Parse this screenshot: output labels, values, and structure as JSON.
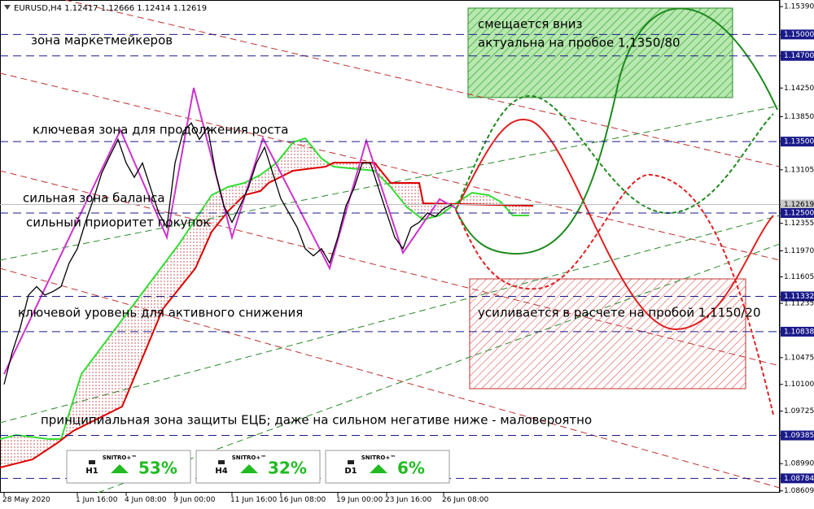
{
  "chart_data": {
    "type": "line",
    "title": "EURUSD,H4  1.12417 1.12666 1.12414 1.12619",
    "categories": [
      "28 May 2020",
      null,
      null,
      null,
      null,
      null,
      null,
      null,
      null,
      "1 Jun 16:00",
      null,
      null,
      null,
      null,
      null,
      "4 Jun 08:00",
      null,
      null,
      null,
      null,
      null,
      "9 Jun 00:00",
      null,
      null,
      null,
      null,
      null,
      null,
      "11 Jun 16:00",
      null,
      null,
      null,
      null,
      null,
      "16 Jun 08:00",
      null,
      null,
      null,
      null,
      null,
      null,
      "19 Jun 00:00",
      null,
      null,
      null,
      null,
      null,
      "23 Jun 16:00",
      null,
      null,
      null,
      null,
      null,
      null,
      "26 Jun 08:00",
      null
    ],
    "values": [
      1.101,
      1.1055,
      1.109,
      1.1135,
      1.1147,
      1.1135,
      1.114,
      1.1147,
      1.118,
      1.12,
      1.1237,
      1.127,
      1.1306,
      1.133,
      1.1353,
      1.132,
      1.13,
      1.132,
      1.1285,
      1.125,
      1.123,
      1.132,
      1.1364,
      1.1376,
      1.1353,
      1.137,
      1.1306,
      1.126,
      1.1237,
      1.126,
      1.1285,
      1.132,
      1.1342,
      1.1306,
      1.127,
      1.125,
      1.123,
      1.12,
      1.119,
      1.12,
      1.118,
      1.1216,
      1.126,
      1.1285,
      1.132,
      1.132,
      1.1285,
      1.125,
      1.1216,
      1.12,
      1.123,
      1.1237,
      1.125,
      1.1245,
      1.1256,
      1.1262
    ],
    "color": "#000000",
    "ylim": [
      1.0856,
      1.1546
    ],
    "yticks": [
      {
        "value": 1.1539,
        "label": "1.15390"
      },
      {
        "value": 1.15,
        "label": "1.15000"
      },
      {
        "value": 1.147,
        "label": "1.14700"
      },
      {
        "value": 1.1425,
        "label": "1.14250"
      },
      {
        "value": 1.1385,
        "label": "1.13850"
      },
      {
        "value": 1.135,
        "label": "1.13500"
      },
      1.13105,
      1.12619,
      {
        "value": 1.125,
        "label": "1.12500"
      },
      1.12355,
      {
        "value": 1.1197,
        "label": "1.11970"
      },
      1.11605,
      1.11332,
      1.11235,
      1.10838,
      1.10475,
      {
        "value": 1.101,
        "label": "1.10100"
      },
      1.09725,
      1.09385,
      {
        "value": 1.0899,
        "label": "1.08990"
      },
      1.08784,
      1.08609
    ],
    "levels": [
      1.15,
      1.147,
      1.135,
      1.125,
      1.11332,
      1.10838,
      1.09385,
      1.08784
    ],
    "current_price": 1.12619,
    "annotations": [
      "зона маркетмейкеров",
      "ключевая зона для продолжения роста",
      "сильная зона баланса",
      "сильный приоритет покупок",
      "ключевой уровень для активного снижения",
      "принципиальная зона защиты ЕЦБ; даже на сильном негативе ниже - маловероятно",
      "смещается вниз",
      "актуальна на пробое 1,1350/80",
      "усиливается в расчете на пробой 1,1150/20"
    ],
    "panels": [
      {
        "brand": "SNITRO+™",
        "timeframe": "H1",
        "value": 53,
        "value_label": "53%"
      },
      {
        "brand": "SNITRO+™",
        "timeframe": "H4",
        "value": 32,
        "value_label": "32%"
      },
      {
        "brand": "SNITRO+™",
        "timeframe": "D1",
        "value": 6,
        "value_label": "6%"
      }
    ]
  }
}
